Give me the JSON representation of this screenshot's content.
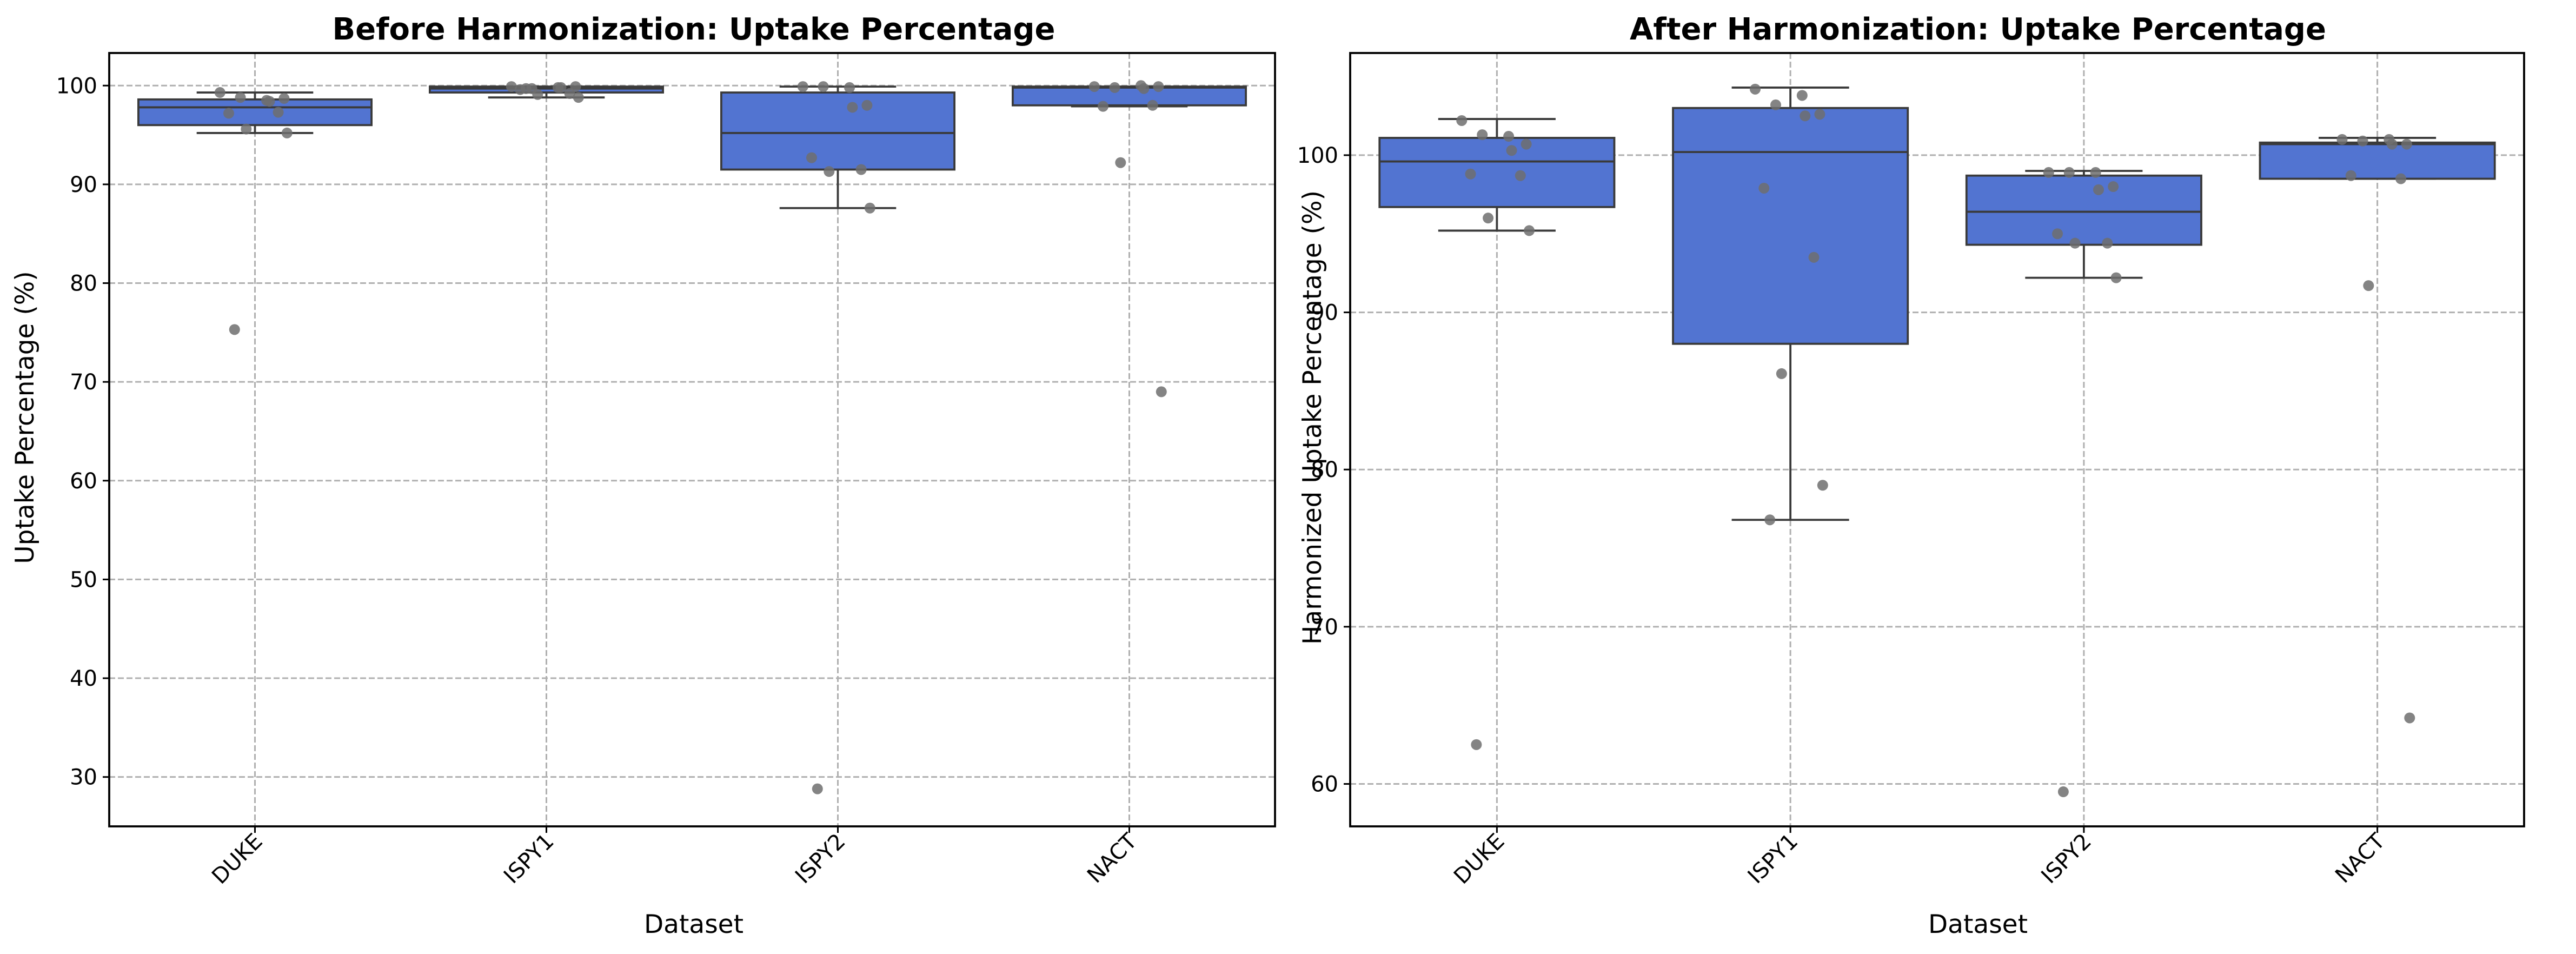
{
  "colors": {
    "box_fill": "#5274d1",
    "point": "#6f6f6f",
    "grid": "#b0b0b0"
  },
  "chart_data": [
    {
      "type": "box",
      "title": "Before Harmonization: Uptake Percentage",
      "xlabel": "Dataset",
      "ylabel": "Uptake Percentage (%)",
      "categories": [
        "DUKE",
        "ISPY1",
        "ISPY2",
        "NACT"
      ],
      "ylim": [
        25.0,
        103.3
      ],
      "yticks": [
        30,
        40,
        50,
        60,
        70,
        80,
        90,
        100
      ],
      "grid": true,
      "boxes": [
        {
          "q1": 96.0,
          "median": 97.8,
          "q3": 98.6,
          "whislo": 95.2,
          "whishi": 99.3
        },
        {
          "q1": 99.3,
          "median": 99.7,
          "q3": 99.9,
          "whislo": 98.8,
          "whishi": 99.9
        },
        {
          "q1": 91.5,
          "median": 95.2,
          "q3": 99.3,
          "whislo": 87.6,
          "whishi": 99.9
        },
        {
          "q1": 98.0,
          "median": 99.8,
          "q3": 99.9,
          "whislo": 97.9,
          "whishi": 99.9
        }
      ],
      "points": [
        [
          99.3,
          98.5,
          98.8,
          98.7,
          98.4,
          97.2,
          97.3,
          95.6,
          95.2,
          75.3
        ],
        [
          99.9,
          99.8,
          99.7,
          99.9,
          99.8,
          99.6,
          99.2,
          99.1,
          98.8,
          99.7
        ],
        [
          99.9,
          99.8,
          99.9,
          98.0,
          97.8,
          92.7,
          91.5,
          91.3,
          87.6,
          28.8
        ],
        [
          99.9,
          100.0,
          99.8,
          99.9,
          99.7,
          97.9,
          98.0,
          92.2,
          69.0
        ]
      ]
    },
    {
      "type": "box",
      "title": "After Harmonization: Uptake Percentage",
      "xlabel": "Dataset",
      "ylabel": "Harmonized Uptake Percentage (%)",
      "categories": [
        "DUKE",
        "ISPY1",
        "ISPY2",
        "NACT"
      ],
      "ylim": [
        57.3,
        106.5
      ],
      "yticks": [
        60,
        70,
        80,
        90,
        100
      ],
      "grid": true,
      "boxes": [
        {
          "q1": 96.7,
          "median": 99.6,
          "q3": 101.1,
          "whislo": 95.2,
          "whishi": 102.3
        },
        {
          "q1": 88.0,
          "median": 100.2,
          "q3": 103.0,
          "whislo": 76.8,
          "whishi": 104.3
        },
        {
          "q1": 94.3,
          "median": 96.4,
          "q3": 98.7,
          "whislo": 92.2,
          "whishi": 99.0
        },
        {
          "q1": 98.5,
          "median": 100.7,
          "q3": 100.8,
          "whislo": 98.5,
          "whishi": 101.1
        }
      ],
      "points": [
        [
          102.2,
          101.2,
          101.3,
          100.7,
          100.3,
          98.8,
          98.7,
          96.0,
          95.2,
          62.5
        ],
        [
          104.2,
          103.8,
          103.2,
          102.6,
          102.5,
          97.9,
          93.5,
          86.1,
          79.0,
          76.8
        ],
        [
          98.9,
          98.9,
          98.9,
          98.0,
          97.8,
          95.0,
          94.4,
          94.4,
          92.2,
          59.5
        ],
        [
          101.0,
          101.0,
          100.9,
          100.7,
          100.7,
          98.7,
          98.5,
          91.7,
          64.2
        ]
      ]
    }
  ]
}
